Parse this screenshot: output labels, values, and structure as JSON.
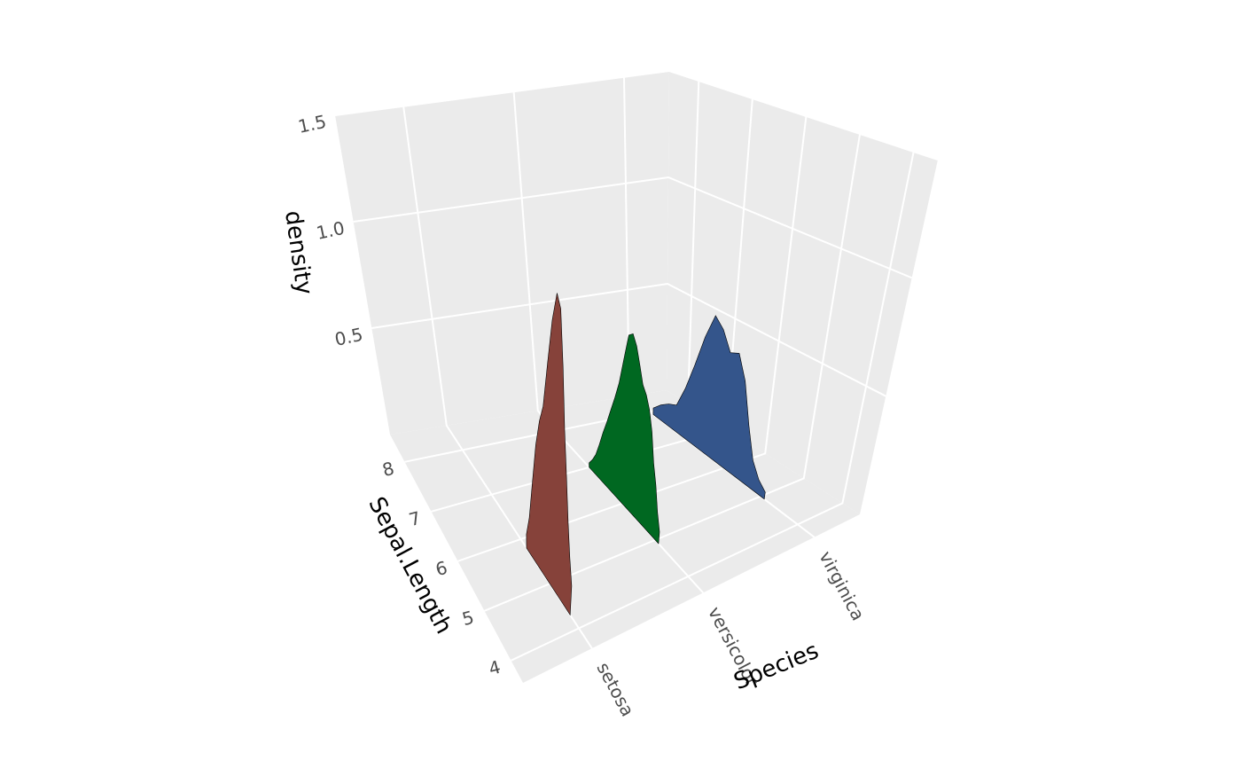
{
  "chart_data": {
    "type": "ridge3d",
    "xlabel": "Sepal.Length",
    "ylabel": "Species",
    "zlabel": "density",
    "categories": [
      "setosa",
      "versicolor",
      "virginica"
    ],
    "xlim": [
      3.55,
      8.55
    ],
    "xticks": [
      4,
      5,
      6,
      7,
      8
    ],
    "zlim": [
      0,
      1.5
    ],
    "zticks": [
      0.5,
      {
        "value": 1,
        "label": "1.0"
      },
      1.5
    ],
    "grid": true,
    "series": [
      {
        "color": "#86423a",
        "x": [
          4.3,
          4.4,
          4.5,
          4.6,
          4.7,
          4.8,
          4.9,
          5.0,
          5.1,
          5.2,
          5.3,
          5.4,
          5.5,
          5.6,
          5.7,
          5.8
        ],
        "values": [
          0.12,
          0.22,
          0.35,
          0.52,
          0.7,
          0.95,
          1.18,
          1.23,
          1.1,
          0.9,
          0.7,
          0.62,
          0.5,
          0.32,
          0.15,
          0.06
        ]
      },
      {
        "color": "#006821",
        "x": [
          4.9,
          5.0,
          5.1,
          5.2,
          5.3,
          5.4,
          5.5,
          5.6,
          5.7,
          5.8,
          5.9,
          6.0,
          6.1,
          6.2,
          6.3,
          6.4,
          6.5,
          6.6,
          6.7,
          6.8,
          6.9,
          7.0
        ],
        "values": [
          0.05,
          0.12,
          0.22,
          0.3,
          0.42,
          0.5,
          0.55,
          0.58,
          0.65,
          0.72,
          0.76,
          0.74,
          0.62,
          0.5,
          0.42,
          0.35,
          0.28,
          0.22,
          0.15,
          0.09,
          0.05,
          0.02
        ]
      },
      {
        "color": "#34558b",
        "x": [
          4.9,
          5.1,
          5.3,
          5.5,
          5.7,
          5.9,
          6.1,
          6.3,
          6.5,
          6.7,
          6.9,
          7.1,
          7.3,
          7.5,
          7.7,
          7.9
        ],
        "values": [
          0.03,
          0.06,
          0.12,
          0.25,
          0.42,
          0.52,
          0.5,
          0.58,
          0.62,
          0.5,
          0.35,
          0.22,
          0.12,
          0.1,
          0.07,
          0.03
        ]
      }
    ]
  }
}
